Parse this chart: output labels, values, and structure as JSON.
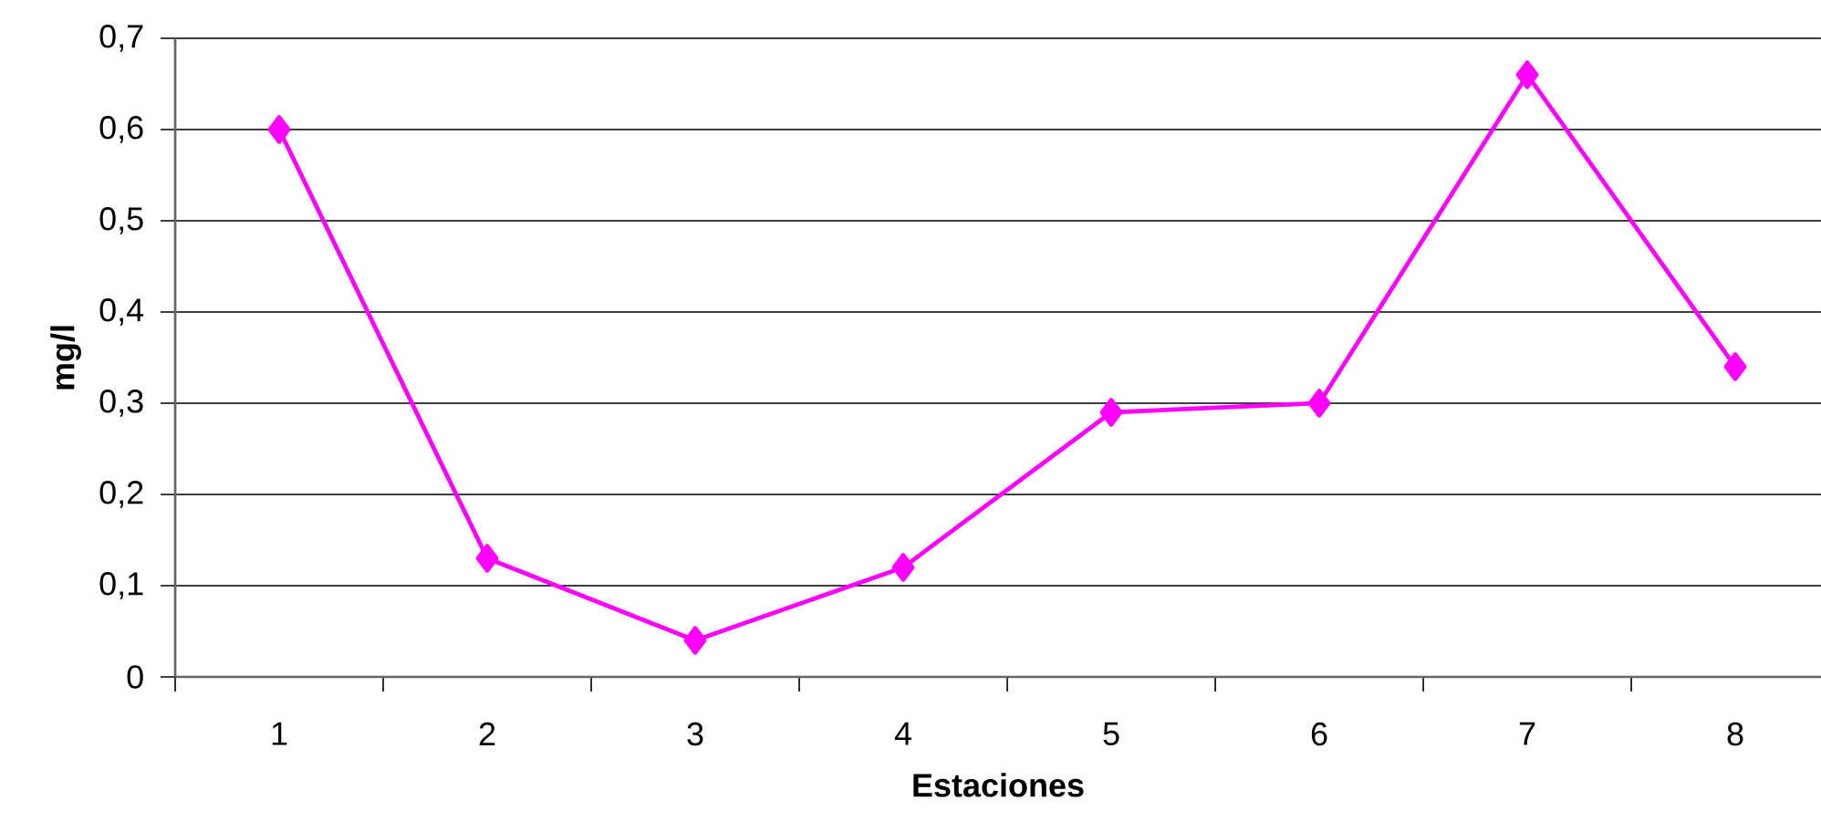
{
  "chart_data": {
    "type": "line",
    "xlabel": "Estaciones",
    "ylabel": "mg/l",
    "categories": [
      "1",
      "2",
      "3",
      "4",
      "5",
      "6",
      "7",
      "8"
    ],
    "values": [
      0.6,
      0.13,
      0.04,
      0.12,
      0.29,
      0.3,
      0.66,
      0.34
    ],
    "color": "#ff00ff",
    "marker": "diamond",
    "grid": "y",
    "ylim": [
      0,
      0.7
    ],
    "yticks": [
      0,
      {
        "value": 0.1,
        "label": "0,1"
      },
      {
        "value": 0.2,
        "label": "0,2"
      },
      {
        "value": 0.3,
        "label": "0,3"
      },
      {
        "value": 0.4,
        "label": "0,4"
      },
      {
        "value": 0.5,
        "label": "0,5"
      },
      {
        "value": 0.6,
        "label": "0,6"
      },
      {
        "value": 0.7,
        "label": "0,7"
      }
    ]
  }
}
